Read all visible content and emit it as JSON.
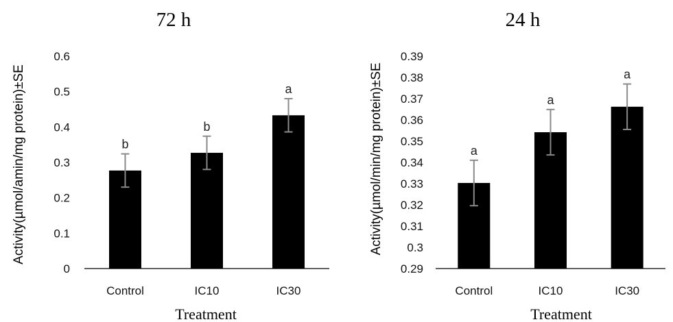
{
  "chart_data": [
    {
      "type": "bar",
      "title": "72 h",
      "xlabel": "Treatment",
      "ylabel": "Activity(µmol/amin/mg protein)±SE",
      "categories": [
        "Control",
        "IC10",
        "IC30"
      ],
      "values": [
        0.277,
        0.327,
        0.433
      ],
      "errors": [
        0.047,
        0.047,
        0.047
      ],
      "annotations": [
        "b",
        "b",
        "a"
      ],
      "ylim": [
        0,
        0.6
      ],
      "yticks": [
        0,
        0.1,
        0.2,
        0.3,
        0.4,
        0.5,
        0.6
      ],
      "ytick_labels": [
        "0",
        "0.1",
        "0.2",
        "0.3",
        "0.4",
        "0.5",
        "0.6"
      ],
      "bar_color": "#000000",
      "error_color": "#8a8a8a",
      "grid": false
    },
    {
      "type": "bar",
      "title": "24 h",
      "xlabel": "Treatment",
      "ylabel": "Activity(µmol/min/mg protein)±SE",
      "categories": [
        "Control",
        "IC10",
        "IC30"
      ],
      "values": [
        0.3303,
        0.3542,
        0.3662
      ],
      "errors": [
        0.0107,
        0.0107,
        0.0107
      ],
      "annotations": [
        "a",
        "a",
        "a"
      ],
      "ylim": [
        0.29,
        0.39
      ],
      "yticks": [
        0.29,
        0.3,
        0.31,
        0.32,
        0.33,
        0.34,
        0.35,
        0.36,
        0.37,
        0.38,
        0.39
      ],
      "ytick_labels": [
        "0.29",
        "0.3",
        "0.31",
        "0.32",
        "0.33",
        "0.34",
        "0.35",
        "0.36",
        "0.37",
        "0.38",
        "0.39"
      ],
      "bar_color": "#000000",
      "error_color": "#8a8a8a",
      "grid": false
    }
  ]
}
